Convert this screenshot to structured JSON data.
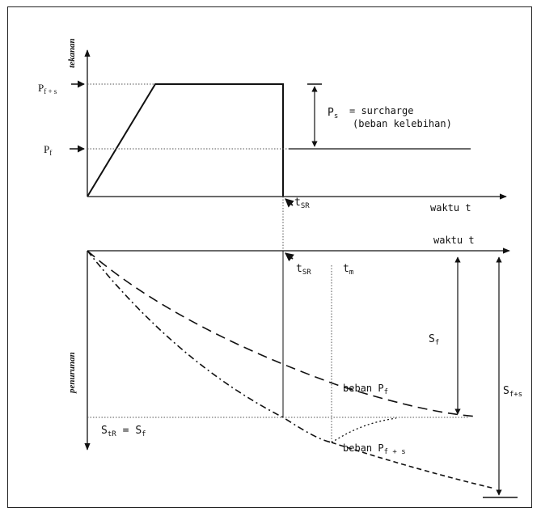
{
  "diagram": {
    "top": {
      "y_label": "tekanan",
      "x_label": "waktu t",
      "p_fs": {
        "main": "P",
        "sub": "f + s"
      },
      "p_f": {
        "main": "P",
        "sub": "f"
      },
      "p_s": {
        "main": "P",
        "sub": "s"
      },
      "surcharge_line1": "= surcharge",
      "surcharge_line2": "(beban kelebihan)",
      "t_sr": {
        "main": "t",
        "sub": "SR"
      }
    },
    "bottom": {
      "y_label": "penurunan",
      "x_label": "waktu t",
      "t_sr": {
        "main": "t",
        "sub": "SR"
      },
      "t_m": {
        "main": "t",
        "sub": "m"
      },
      "s_f": {
        "main": "S",
        "sub": "f"
      },
      "s_fs": {
        "main": "S",
        "sub": "f+s"
      },
      "s_tr_eq": {
        "main": "S",
        "sub": "tR",
        "eq": "= S",
        "sub2": "f"
      },
      "beban_pf": {
        "text": "beban P",
        "sub": "f"
      },
      "beban_pfs": {
        "text": "beban P",
        "sub": "f + s"
      }
    }
  },
  "colors": {
    "line": "#111111",
    "dotted": "#555555"
  }
}
